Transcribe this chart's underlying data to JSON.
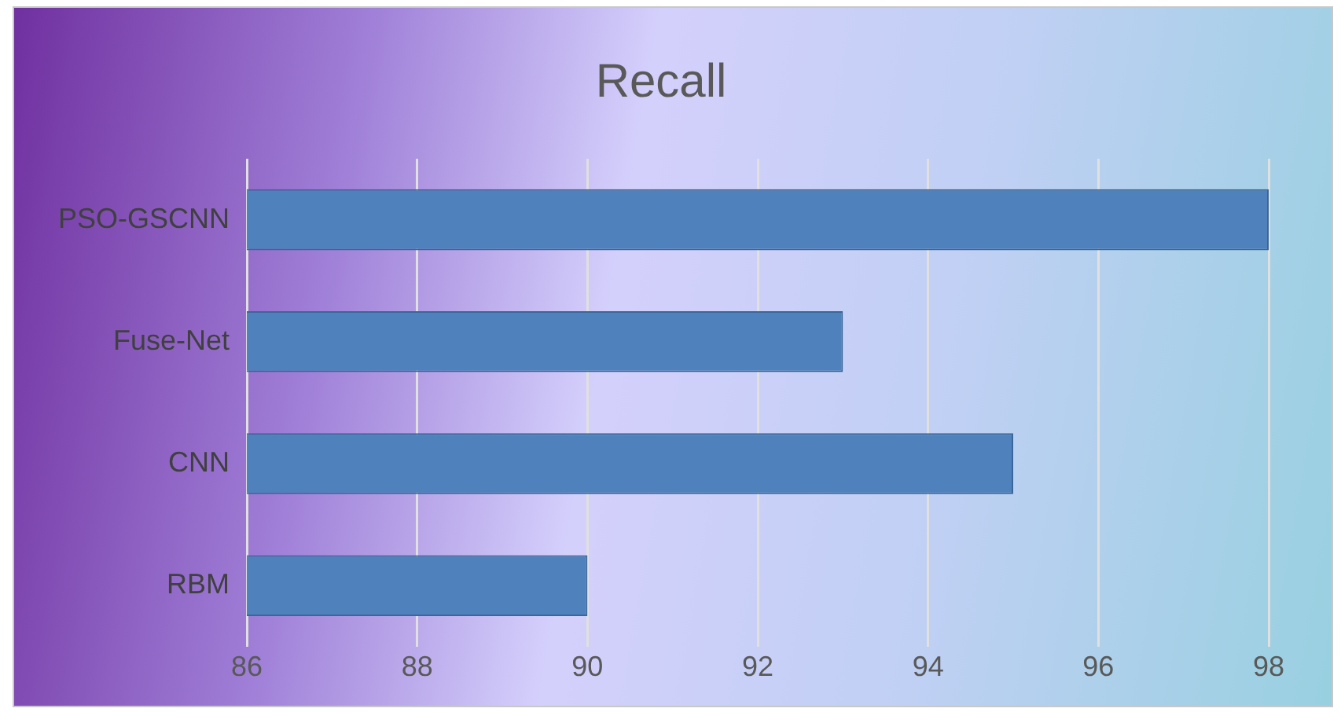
{
  "chart_data": {
    "type": "bar",
    "orientation": "horizontal",
    "title": "Recall",
    "categories": [
      "PSO-GSCNN",
      "Fuse-Net",
      "CNN",
      "RBM"
    ],
    "values": [
      98,
      93,
      95,
      90
    ],
    "color": "#4f81bd",
    "xlim": [
      86,
      98
    ],
    "xticks": [
      86,
      88,
      90,
      92,
      94,
      96,
      98
    ],
    "grid": "x"
  }
}
